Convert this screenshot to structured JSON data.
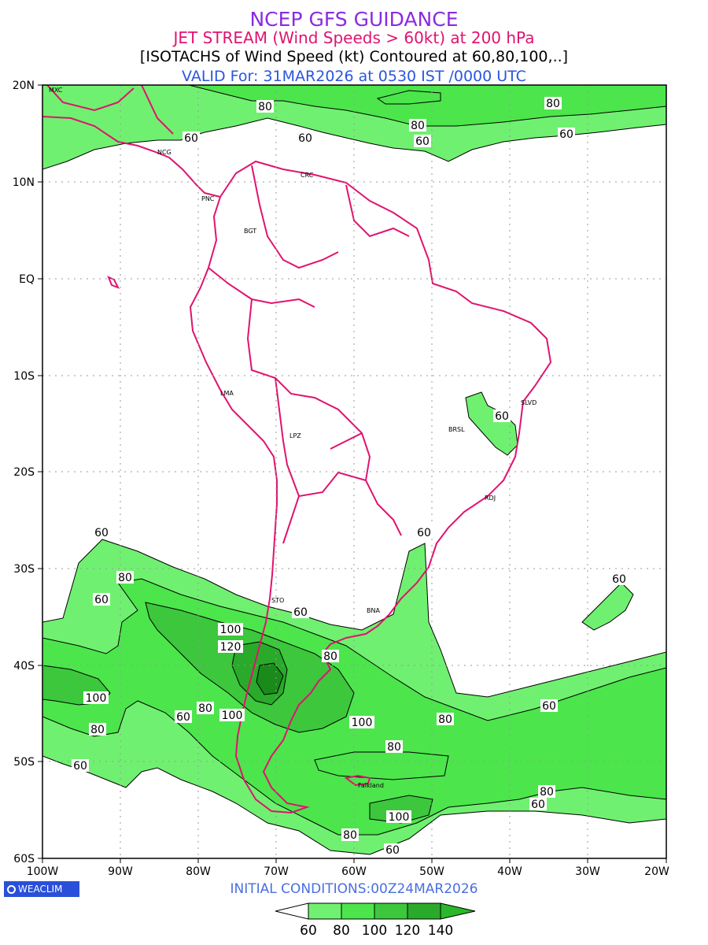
{
  "header": {
    "line1": "NCEP GFS GUIDANCE",
    "line2": "JET STREAM (Wind Speeds > 60kt) at 200 hPa",
    "line3": "[ISOTACHS of Wind Speed (kt) Contoured at 60,80,100,..]",
    "line4": "VALID For: 31MAR2026 at 0530 IST /0000 UTC"
  },
  "axes": {
    "lat_labels": [
      "20N",
      "10N",
      "EQ",
      "10S",
      "20S",
      "30S",
      "40S",
      "50S",
      "60S"
    ],
    "lon_labels": [
      "100W",
      "90W",
      "80W",
      "70W",
      "60W",
      "50W",
      "40W",
      "30W",
      "20W"
    ]
  },
  "cities": [
    "MXC",
    "NCG",
    "CRC",
    "PNC",
    "BGT",
    "LMA",
    "LPZ",
    "BRSL",
    "SLVD",
    "RDJ",
    "STO",
    "BNA",
    "Falkland"
  ],
  "contour_labels": {
    "c60": "60",
    "c80": "80",
    "c100": "100",
    "c120": "120"
  },
  "colors": {
    "band60": "#70f070",
    "band80": "#4ce54c",
    "band100": "#3cc73c",
    "band120": "#2aaa2a",
    "band140": "#1a8a1a",
    "coast": "#e0136f"
  },
  "footer": {
    "brand": "WEACLIM",
    "initial": "INITIAL CONDITIONS:00Z24MAR2026"
  },
  "colorbar": {
    "labels": [
      "60",
      "80",
      "100",
      "120",
      "140"
    ]
  }
}
